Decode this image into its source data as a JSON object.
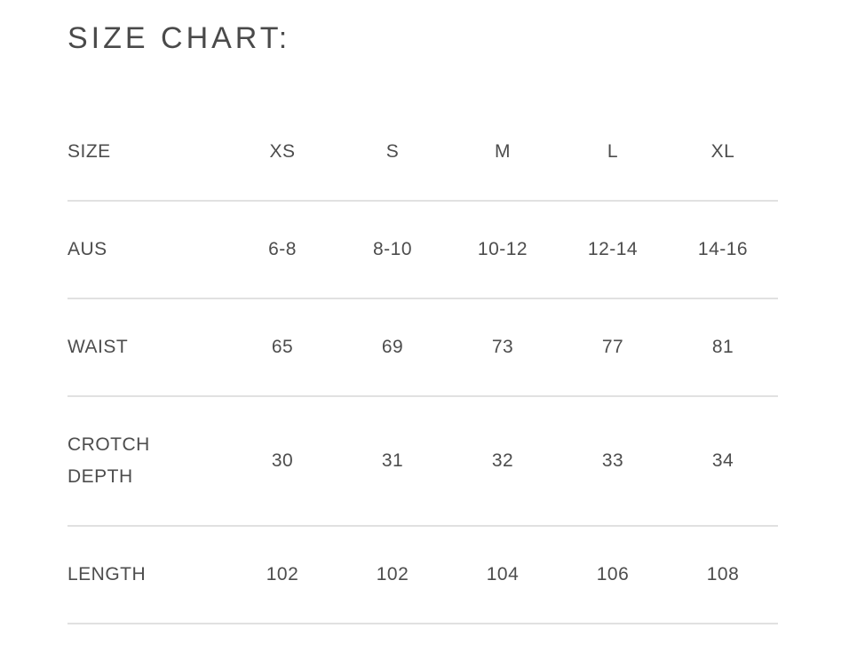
{
  "page": {
    "title": "SIZE CHART:",
    "colors": {
      "background": "#ffffff",
      "title_text": "#4a4a4a",
      "body_text": "#4d4d4d",
      "divider": "#e1e1e1"
    }
  },
  "chart_data": {
    "type": "table",
    "title": "SIZE CHART:",
    "columns": [
      "SIZE",
      "XS",
      "S",
      "M",
      "L",
      "XL"
    ],
    "rows": [
      {
        "label": "AUS",
        "values": [
          "6-8",
          "8-10",
          "10-12",
          "12-14",
          "14-16"
        ]
      },
      {
        "label": "WAIST",
        "values": [
          "65",
          "69",
          "73",
          "77",
          "81"
        ]
      },
      {
        "label": "CROTCH DEPTH",
        "values": [
          "30",
          "31",
          "32",
          "33",
          "34"
        ]
      },
      {
        "label": "LENGTH",
        "values": [
          "102",
          "102",
          "104",
          "106",
          "108"
        ]
      }
    ]
  }
}
